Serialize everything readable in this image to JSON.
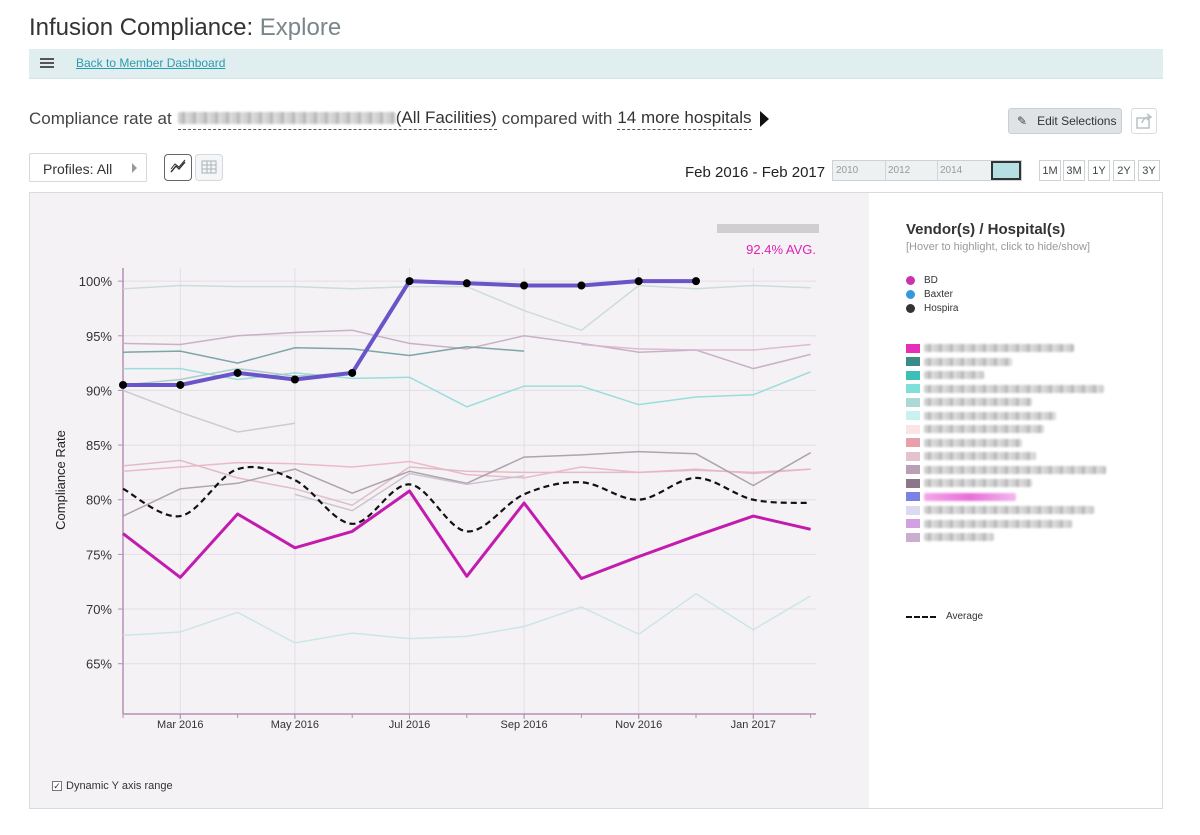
{
  "header": {
    "title": "Infusion Compliance:",
    "subtitle": "Explore"
  },
  "nav": {
    "back_link": "Back to Member Dashboard"
  },
  "compliance": {
    "prefix": "Compliance rate at",
    "all_facilities": "(All Facilities)",
    "compared_with": "compared with",
    "more_hospitals": "14 more hospitals"
  },
  "toolbar": {
    "edit_label": "Edit Selections",
    "profiles_label": "Profiles: All"
  },
  "date_range": "Feb 2016 - Feb 2017",
  "timeline_years": [
    "2010",
    "2012",
    "2014"
  ],
  "range_buttons": [
    "1M",
    "3M",
    "1Y",
    "2Y",
    "3Y"
  ],
  "avg_label": "92.4% AVG.",
  "dynamic_y_label": "Dynamic Y axis range",
  "legend": {
    "title": "Vendor(s) / Hospital(s)",
    "subtitle": "[Hover to highlight, click to hide/show]",
    "vendors": [
      {
        "name": "BD",
        "color": "#cc33aa"
      },
      {
        "name": "Baxter",
        "color": "#3399dd"
      },
      {
        "name": "Hospira",
        "color": "#333333"
      }
    ],
    "hospital_swatch_colors": [
      "#e62fb8",
      "#3a8c88",
      "#3bbfb6",
      "#7ee0d9",
      "#aed8d8",
      "#c8f2ef",
      "#fbe4e6",
      "#e8a0aa",
      "#e6c2cf",
      "#b9a0b6",
      "#8c7788",
      "#7a82e6",
      "#ddd9f2",
      "#d3a0e0",
      "#c9aed0"
    ],
    "average_label": "Average"
  },
  "chart_data": {
    "type": "line",
    "x": [
      "2016-02",
      "2016-03",
      "2016-04",
      "2016-05",
      "2016-06",
      "2016-07",
      "2016-08",
      "2016-09",
      "2016-10",
      "2016-11",
      "2016-12",
      "2017-01",
      "2017-02"
    ],
    "x_tick_labels": [
      "Mar 2016",
      "May 2016",
      "Jul 2016",
      "Sep 2016",
      "Nov 2016",
      "Jan 2017"
    ],
    "y_tick_labels": [
      "100%",
      "95%",
      "90%",
      "85%",
      "80%",
      "75%",
      "70%",
      "65%"
    ],
    "ylabel": "Compliance Rate",
    "ylim": [
      60.4,
      101.2
    ],
    "grid": true,
    "highlight": {
      "color": "#6a55c8",
      "values": [
        90.5,
        90.5,
        91.6,
        91.0,
        91.6,
        100.0,
        99.8,
        99.6,
        99.6,
        100.0,
        100.0,
        null,
        null
      ]
    },
    "bd_series": {
      "color": "#c21bae",
      "values": [
        76.9,
        72.9,
        78.7,
        75.6,
        77.1,
        80.8,
        73.0,
        79.7,
        72.8,
        74.8,
        76.7,
        78.5,
        77.3
      ]
    },
    "average": {
      "name": "Average",
      "color": "#111111",
      "values": [
        81.0,
        78.5,
        82.8,
        81.8,
        77.8,
        81.4,
        77.1,
        80.5,
        81.6,
        80.0,
        82.0,
        80.0,
        79.7
      ]
    },
    "background_series": [
      {
        "color": "#c8d8d8",
        "values": [
          99.3,
          99.6,
          99.5,
          99.5,
          99.3,
          99.5,
          99.5,
          97.3,
          95.5,
          99.6,
          99.3,
          99.6,
          99.4
        ]
      },
      {
        "color": "#c6a9c0",
        "values": [
          94.3,
          94.2,
          95.0,
          95.3,
          95.5,
          94.3,
          93.8,
          95.0,
          94.3,
          93.5,
          93.7,
          92.0,
          93.3
        ]
      },
      {
        "color": "#d8b6cc",
        "values": [
          null,
          null,
          null,
          null,
          null,
          null,
          null,
          null,
          94.2,
          93.8,
          93.7,
          93.7,
          94.2
        ]
      },
      {
        "color": "#6f9c9f",
        "values": [
          93.5,
          93.6,
          92.5,
          93.9,
          93.8,
          93.2,
          94.0,
          93.6,
          null,
          null,
          null,
          null,
          null
        ]
      },
      {
        "color": "#90dada",
        "values": [
          92.0,
          92.0,
          91.0,
          91.6,
          91.1,
          91.2,
          88.5,
          90.4,
          90.4,
          88.7,
          89.4,
          89.6,
          91.7
        ]
      },
      {
        "color": "#a4c7c7",
        "values": [
          90.5,
          91.0,
          92.0,
          91.3,
          91.6,
          null,
          null,
          null,
          null,
          null,
          null,
          null,
          null
        ]
      },
      {
        "color": "#c9c6cc",
        "values": [
          90.0,
          88.0,
          86.2,
          87.0,
          null,
          null,
          null,
          null,
          null,
          null,
          null,
          null,
          null
        ]
      },
      {
        "color": "#e0b6bf",
        "values": [
          83.1,
          83.6,
          82.0,
          81.0,
          79.5,
          83.0,
          82.6,
          82.5,
          82.5,
          82.5,
          82.7,
          82.5,
          82.8
        ]
      },
      {
        "color": "#eab4c2",
        "values": [
          82.6,
          83.0,
          83.4,
          83.3,
          83.0,
          83.5,
          82.3,
          82.0,
          83.0,
          82.5,
          82.8,
          82.4,
          82.8
        ]
      },
      {
        "color": "#a79aa5",
        "values": [
          78.5,
          81.0,
          81.5,
          82.8,
          80.6,
          82.6,
          81.5,
          83.9,
          84.1,
          84.4,
          84.2,
          81.3,
          84.3
        ]
      },
      {
        "color": "#c6bfcc",
        "values": [
          null,
          null,
          null,
          80.5,
          79.0,
          82.4,
          81.4,
          82.2,
          null,
          null,
          null,
          null,
          null
        ]
      },
      {
        "color": "#c6e4e4",
        "values": [
          67.6,
          67.9,
          69.7,
          66.9,
          67.8,
          67.3,
          67.5,
          68.4,
          70.2,
          67.7,
          71.4,
          68.1,
          71.2
        ]
      }
    ]
  }
}
